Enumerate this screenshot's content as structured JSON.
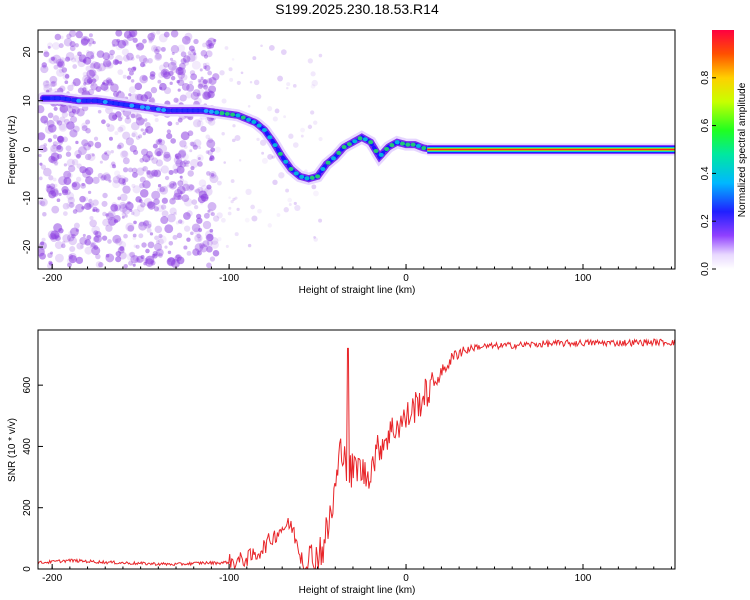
{
  "figure": {
    "title": "S199.2025.230.18.53.R14"
  },
  "colors": {
    "snr_line": "#e8262a",
    "axis": "#000000",
    "dots": "#8a3be0"
  },
  "chart_data": [
    {
      "type": "heatmap",
      "title": "S199.2025.230.18.53.R14",
      "xlabel": "Height of straight line (km)",
      "ylabel": "Frequency (Hz)",
      "xlim": [
        -208,
        152
      ],
      "ylim": [
        -24.5,
        24.5
      ],
      "xticks": [
        -200,
        -100,
        0,
        100
      ],
      "yticks": [
        20,
        10,
        0,
        -10,
        -20
      ],
      "colorbar": {
        "label": "Normalized spectral amplitude",
        "range": [
          0,
          1
        ],
        "ticks": [
          0.0,
          0.2,
          0.4,
          0.6,
          0.8
        ]
      },
      "ridge": {
        "description": "frequency of peak spectral amplitude vs height",
        "x": [
          -205,
          -195,
          -185,
          -175,
          -165,
          -155,
          -145,
          -135,
          -125,
          -115,
          -105,
          -95,
          -85,
          -80,
          -75,
          -70,
          -65,
          -60,
          -55,
          -50,
          -45,
          -40,
          -35,
          -30,
          -25,
          -20,
          -15,
          -10,
          -5,
          0,
          5,
          10,
          15,
          50,
          100,
          150
        ],
        "y": [
          10.5,
          10.5,
          10,
          10,
          9.5,
          9,
          8.5,
          8,
          8,
          8,
          7.5,
          7,
          5.5,
          4,
          1.5,
          -1.5,
          -4,
          -5.5,
          -6,
          -5.5,
          -3,
          -1.5,
          0.5,
          1.5,
          2.5,
          1.5,
          -1.5,
          0.5,
          1.5,
          1,
          1,
          0.3,
          0,
          0,
          0,
          0
        ]
      }
    },
    {
      "type": "line",
      "xlabel": "Height of straight line (km)",
      "ylabel": "SNR (10 * v/v)",
      "xlim": [
        -208,
        152
      ],
      "ylim": [
        0,
        780
      ],
      "xticks": [
        -200,
        -100,
        0,
        100
      ],
      "yticks": [
        0,
        200,
        400,
        600
      ],
      "series": [
        {
          "name": "SNR",
          "x": [
            -208,
            -190,
            -170,
            -150,
            -130,
            -115,
            -105,
            -95,
            -85,
            -80,
            -75,
            -70,
            -65,
            -62,
            -58,
            -55,
            -50,
            -47,
            -45,
            -42,
            -40,
            -37,
            -35,
            -33,
            -31,
            -28,
            -25,
            -22,
            -18,
            -15,
            -10,
            -5,
            0,
            5,
            10,
            15,
            20,
            25,
            30,
            40,
            60,
            80,
            100,
            120,
            140,
            152
          ],
          "y": [
            20,
            28,
            22,
            18,
            15,
            20,
            20,
            25,
            45,
            75,
            105,
            135,
            145,
            90,
            35,
            25,
            45,
            75,
            110,
            190,
            260,
            380,
            420,
            300,
            310,
            340,
            320,
            300,
            360,
            400,
            440,
            470,
            490,
            530,
            560,
            600,
            640,
            680,
            710,
            725,
            730,
            735,
            738,
            738,
            740,
            740
          ]
        }
      ]
    }
  ]
}
